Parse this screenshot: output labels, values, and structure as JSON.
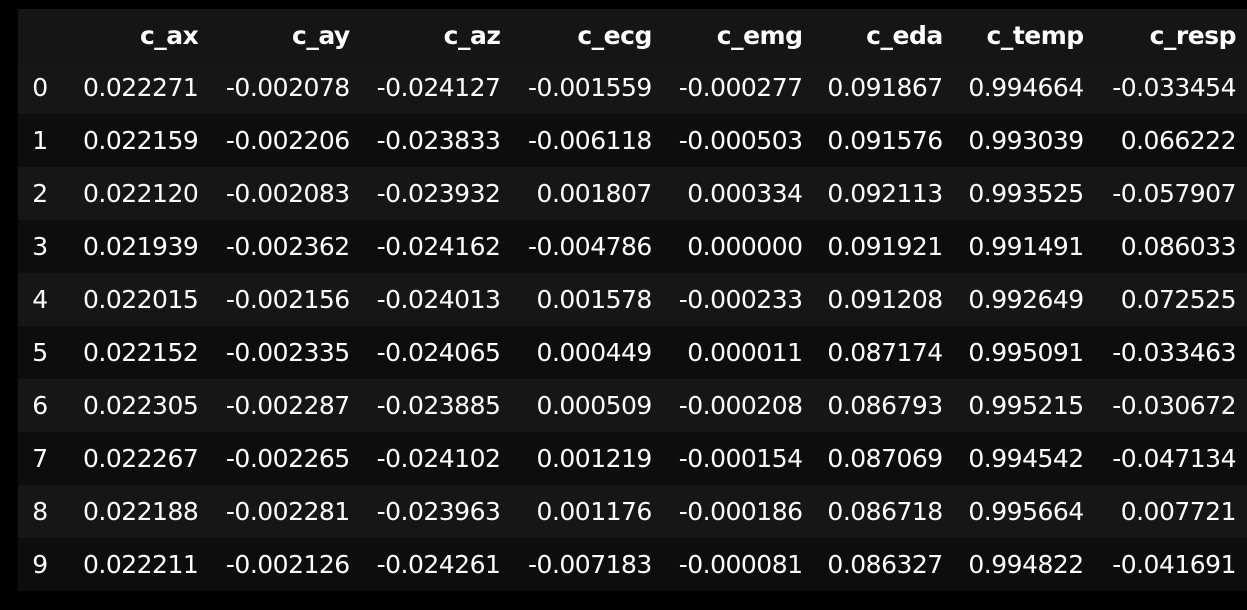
{
  "table": {
    "columns": [
      "",
      "c_ax",
      "c_ay",
      "c_az",
      "c_ecg",
      "c_emg",
      "c_eda",
      "c_temp",
      "c_resp"
    ],
    "rows": [
      [
        "0",
        "0.022271",
        "-0.002078",
        "-0.024127",
        "-0.001559",
        "-0.000277",
        "0.091867",
        "0.994664",
        "-0.033454"
      ],
      [
        "1",
        "0.022159",
        "-0.002206",
        "-0.023833",
        "-0.006118",
        "-0.000503",
        "0.091576",
        "0.993039",
        "0.066222"
      ],
      [
        "2",
        "0.022120",
        "-0.002083",
        "-0.023932",
        "0.001807",
        "0.000334",
        "0.092113",
        "0.993525",
        "-0.057907"
      ],
      [
        "3",
        "0.021939",
        "-0.002362",
        "-0.024162",
        "-0.004786",
        "0.000000",
        "0.091921",
        "0.991491",
        "0.086033"
      ],
      [
        "4",
        "0.022015",
        "-0.002156",
        "-0.024013",
        "0.001578",
        "-0.000233",
        "0.091208",
        "0.992649",
        "0.072525"
      ],
      [
        "5",
        "0.022152",
        "-0.002335",
        "-0.024065",
        "0.000449",
        "0.000011",
        "0.087174",
        "0.995091",
        "-0.033463"
      ],
      [
        "6",
        "0.022305",
        "-0.002287",
        "-0.023885",
        "0.000509",
        "-0.000208",
        "0.086793",
        "0.995215",
        "-0.030672"
      ],
      [
        "7",
        "0.022267",
        "-0.002265",
        "-0.024102",
        "0.001219",
        "-0.000154",
        "0.087069",
        "0.994542",
        "-0.047134"
      ],
      [
        "8",
        "0.022188",
        "-0.002281",
        "-0.023963",
        "0.001176",
        "-0.000186",
        "0.086718",
        "0.995664",
        "0.007721"
      ],
      [
        "9",
        "0.022211",
        "-0.002126",
        "-0.024261",
        "-0.007183",
        "-0.000081",
        "0.086327",
        "0.994822",
        "-0.041691"
      ]
    ]
  }
}
